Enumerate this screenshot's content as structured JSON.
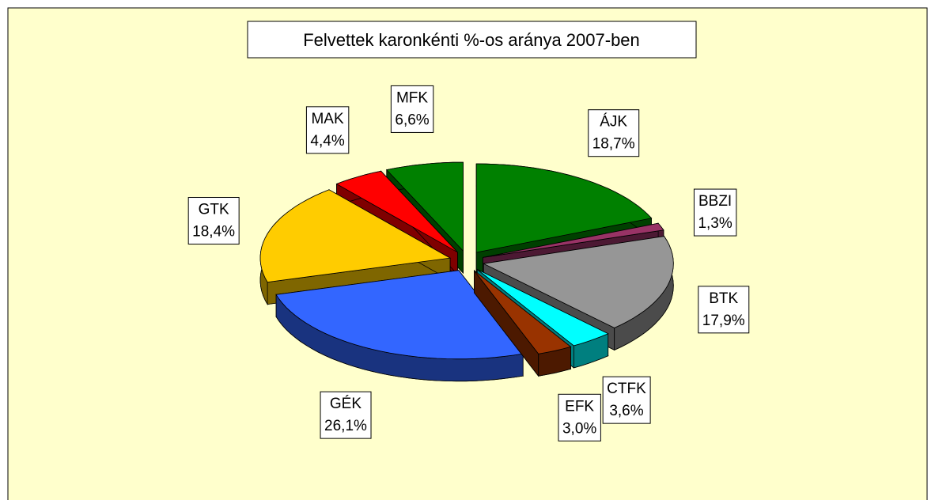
{
  "chart_data": {
    "type": "pie3d",
    "title": "Felvettek karonkénti %-os aránya 2007-ben",
    "categories": [
      "ÁJK",
      "BBZI",
      "BTK",
      "CTFK",
      "EFK",
      "GÉK",
      "GTK",
      "MAK",
      "MFK"
    ],
    "values": [
      18.7,
      1.3,
      17.9,
      3.6,
      3.0,
      26.1,
      18.4,
      4.4,
      6.6
    ],
    "value_labels": [
      "18,7%",
      "1,3%",
      "17,9%",
      "3,6%",
      "3,0%",
      "26,1%",
      "18,4%",
      "4,4%",
      "6,6%"
    ],
    "colors": [
      "#008000",
      "#993366",
      "#969696",
      "#00ffff",
      "#993300",
      "#3366ff",
      "#ffcc00",
      "#ff0000",
      "#008000"
    ]
  }
}
